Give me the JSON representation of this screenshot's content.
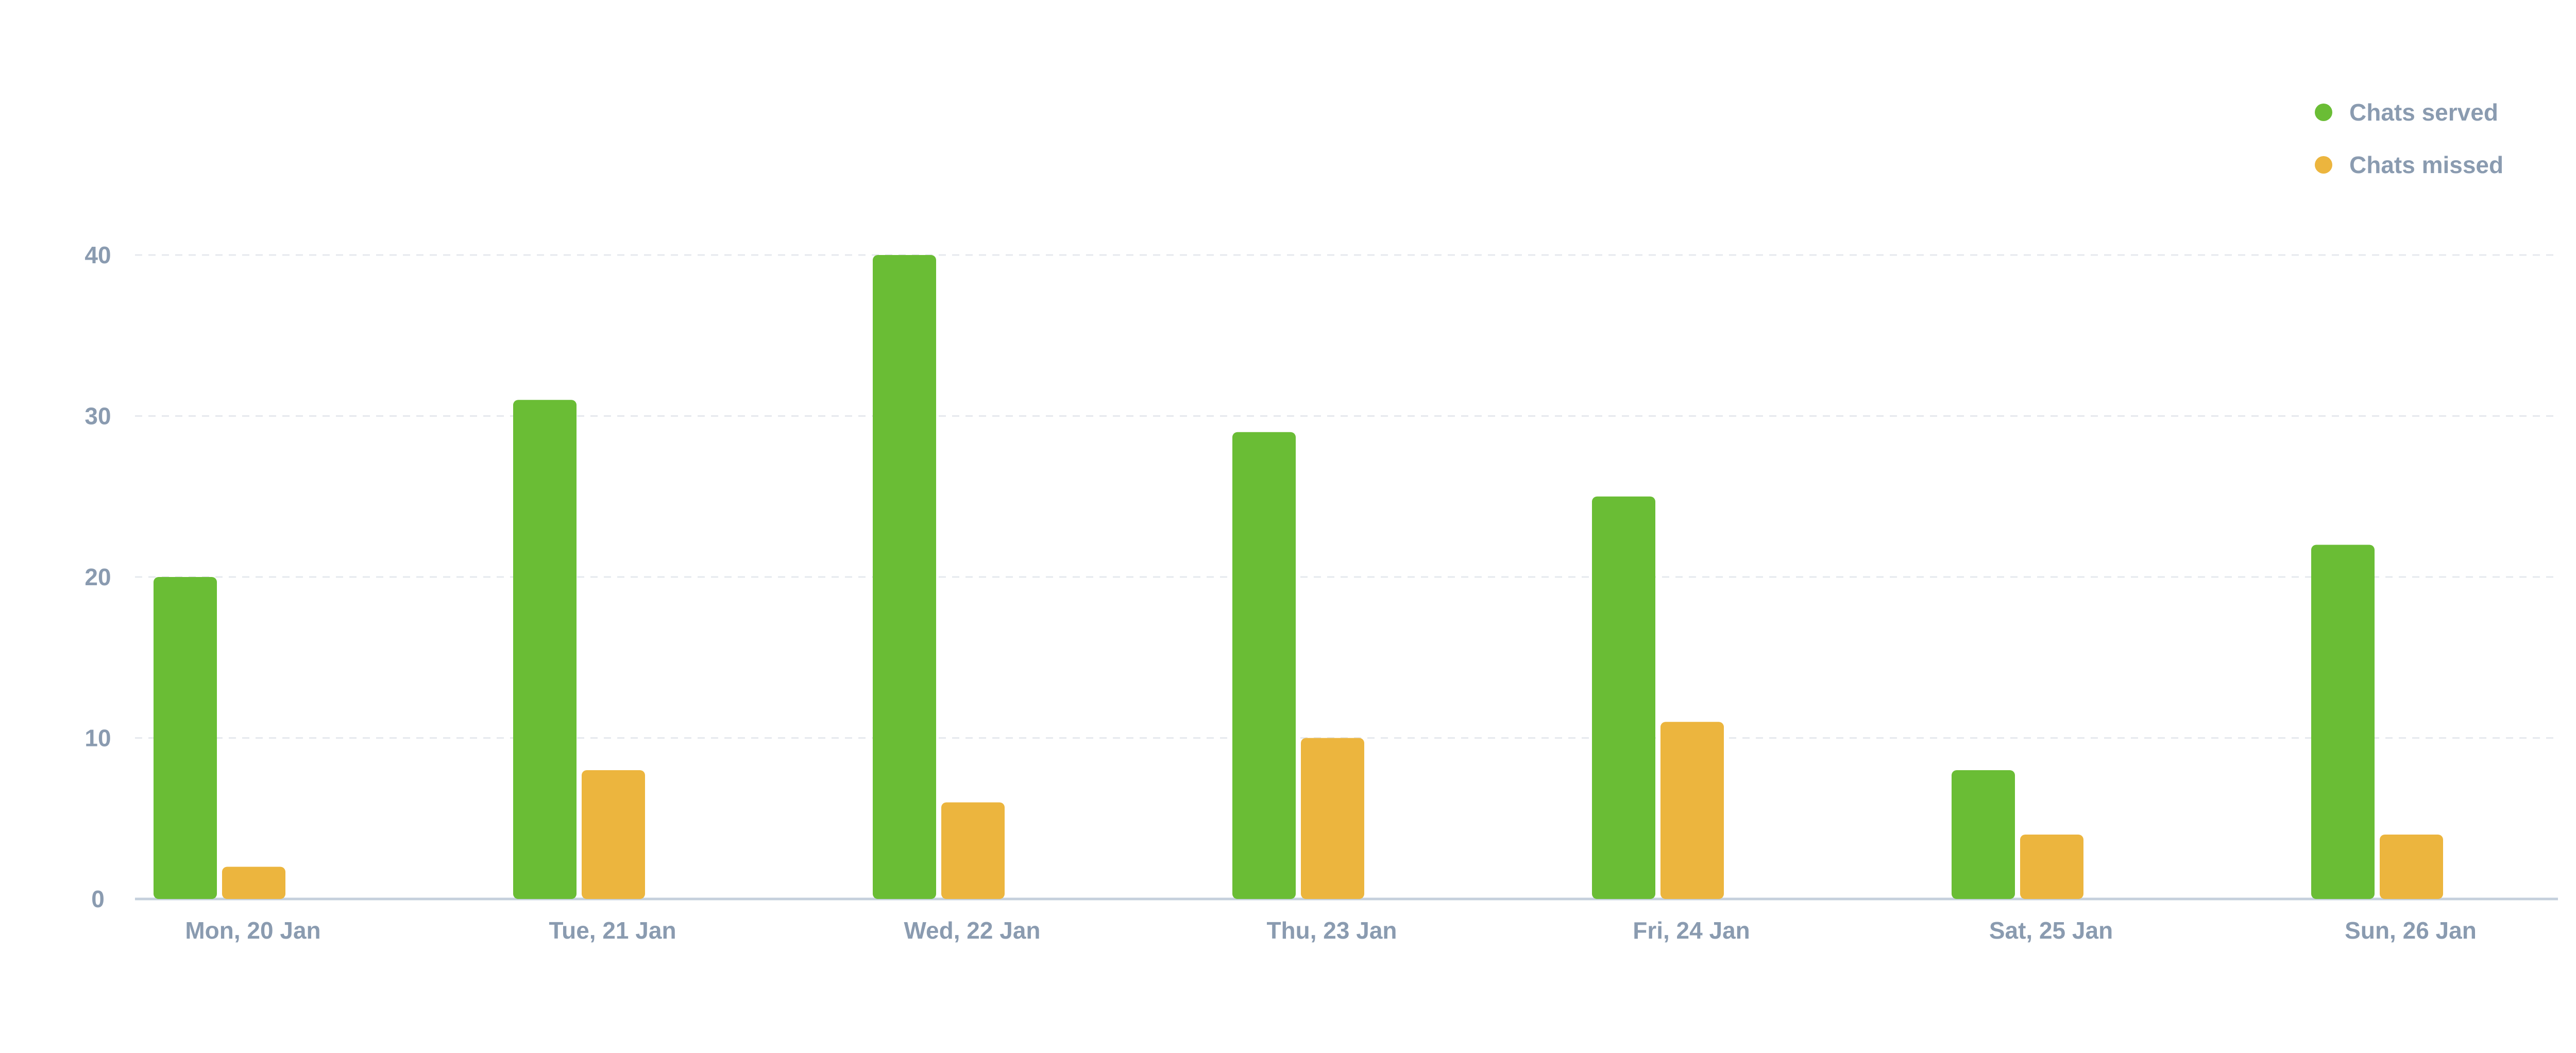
{
  "chart_data": {
    "type": "bar",
    "categories": [
      "Mon, 20 Jan",
      "Tue, 21 Jan",
      "Wed, 22 Jan",
      "Thu, 23 Jan",
      "Fri, 24 Jan",
      "Sat, 25 Jan",
      "Sun, 26 Jan"
    ],
    "series": [
      {
        "name": "Chats served",
        "color": "#6abd35",
        "values": [
          20,
          31,
          40,
          29,
          25,
          8,
          22
        ]
      },
      {
        "name": "Chats missed",
        "color": "#ecb53e",
        "values": [
          2,
          8,
          6,
          10,
          11,
          4,
          4
        ]
      }
    ],
    "yticks": [
      0,
      10,
      20,
      30,
      40
    ],
    "ylim": [
      0,
      40
    ],
    "grid": true,
    "grid_style": "dashed",
    "legend_position": "top-right"
  }
}
